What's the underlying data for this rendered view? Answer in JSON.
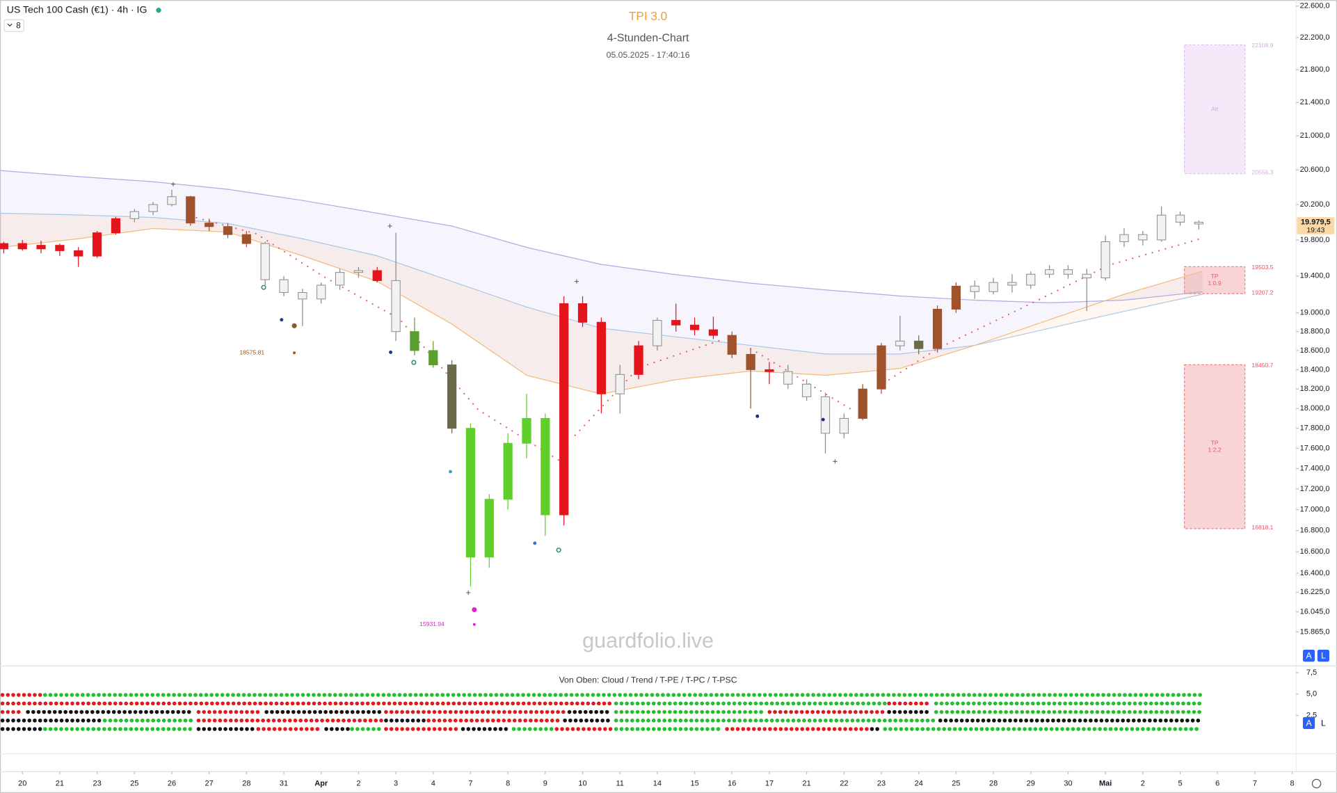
{
  "chart_data": {
    "type": "candlestick",
    "symbol": "US Tech 100 Cash (€1) · 4h · IG",
    "interval_button": "8",
    "title": "TPI 3.0",
    "subtitle": "4-Stunden-Chart",
    "timestamp": "05.05.2025 - 17:40:16",
    "watermark": "guardfolio.live",
    "log": true,
    "grid": false,
    "ylim": [
      15600,
      22650
    ],
    "yticks": [
      {
        "value": 22600,
        "label": "22.600,0"
      },
      {
        "value": 22200,
        "label": "22.200,0"
      },
      {
        "value": 21800,
        "label": "21.800,0"
      },
      {
        "value": 21400,
        "label": "21.400,0"
      },
      {
        "value": 21000,
        "label": "21.000,0"
      },
      {
        "value": 20600,
        "label": "20.600,0"
      },
      {
        "value": 20200,
        "label": "20.200,0"
      },
      {
        "value": 19800,
        "label": "19.800,0"
      },
      {
        "value": 19400,
        "label": "19.400,0"
      },
      {
        "value": 19000,
        "label": "19.000,0"
      },
      {
        "value": 18800,
        "label": "18.800,0"
      },
      {
        "value": 18600,
        "label": "18.600,0"
      },
      {
        "value": 18400,
        "label": "18.400,0"
      },
      {
        "value": 18200,
        "label": "18.200,0"
      },
      {
        "value": 18000,
        "label": "18.000,0"
      },
      {
        "value": 17800,
        "label": "17.800,0"
      },
      {
        "value": 17600,
        "label": "17.600,0"
      },
      {
        "value": 17400,
        "label": "17.400,0"
      },
      {
        "value": 17200,
        "label": "17.200,0"
      },
      {
        "value": 17000,
        "label": "17.000,0"
      },
      {
        "value": 16800,
        "label": "16.800,0"
      },
      {
        "value": 16600,
        "label": "16.600,0"
      },
      {
        "value": 16400,
        "label": "16.400,0"
      },
      {
        "value": 16225,
        "label": "16.225,0"
      },
      {
        "value": 16045,
        "label": "16.045,0"
      },
      {
        "value": 15865,
        "label": "15.865,0"
      }
    ],
    "xlim": [
      -0.6,
      35.2
    ],
    "xticks": [
      {
        "value": 0,
        "label": "20"
      },
      {
        "value": 1,
        "label": "21"
      },
      {
        "value": 2,
        "label": "23"
      },
      {
        "value": 3,
        "label": "25"
      },
      {
        "value": 4,
        "label": "26"
      },
      {
        "value": 5,
        "label": "27"
      },
      {
        "value": 6,
        "label": "28"
      },
      {
        "value": 7,
        "label": "31"
      },
      {
        "value": 8,
        "label": "Apr"
      },
      {
        "value": 9,
        "label": "2"
      },
      {
        "value": 10,
        "label": "3"
      },
      {
        "value": 11,
        "label": "4"
      },
      {
        "value": 12,
        "label": "7"
      },
      {
        "value": 13,
        "label": "8"
      },
      {
        "value": 14,
        "label": "9"
      },
      {
        "value": 15,
        "label": "10"
      },
      {
        "value": 16,
        "label": "11"
      },
      {
        "value": 17,
        "label": "14"
      },
      {
        "value": 18,
        "label": "15"
      },
      {
        "value": 19,
        "label": "16"
      },
      {
        "value": 20,
        "label": "17"
      },
      {
        "value": 21,
        "label": "21"
      },
      {
        "value": 22,
        "label": "22"
      },
      {
        "value": 23,
        "label": "23"
      },
      {
        "value": 24,
        "label": "24"
      },
      {
        "value": 25,
        "label": "25"
      },
      {
        "value": 26,
        "label": "28"
      },
      {
        "value": 27,
        "label": "29"
      },
      {
        "value": 28,
        "label": "30"
      },
      {
        "value": 29,
        "label": "Mai"
      },
      {
        "value": 30,
        "label": "2"
      },
      {
        "value": 31,
        "label": "5"
      },
      {
        "value": 32,
        "label": "6"
      },
      {
        "value": 33,
        "label": "7"
      },
      {
        "value": 34,
        "label": "8"
      }
    ],
    "candles": {
      "x": [
        -0.5,
        0,
        0.5,
        1,
        1.5,
        2,
        2.5,
        3,
        3.5,
        4,
        4.5,
        5,
        5.5,
        6,
        6.5,
        7,
        7.5,
        8,
        8.5,
        9,
        9.5,
        10,
        10.5,
        11,
        11.5,
        12,
        12.5,
        13,
        13.5,
        14,
        14.5,
        15,
        15.5,
        16,
        16.5,
        17,
        17.5,
        18,
        18.5,
        19,
        19.5,
        20,
        20.5,
        21,
        21.5,
        22,
        22.5,
        23,
        23.5,
        24,
        24.5,
        25,
        25.5,
        26,
        26.5,
        27,
        27.5,
        28,
        28.5,
        29,
        29.5,
        30,
        30.5,
        31,
        31.5
      ],
      "open": [
        19700,
        19760,
        19700,
        19740,
        19680,
        19620,
        19880,
        20040,
        20120,
        20200,
        20290,
        19990,
        19950,
        19860,
        19760,
        19360,
        19220,
        19150,
        19300,
        19440,
        19460,
        19350,
        18800,
        18600,
        18450,
        17800,
        16550,
        17100,
        17650,
        17900,
        16950,
        19100,
        18900,
        18150,
        18350,
        18650,
        18920,
        18870,
        18820,
        18760,
        18560,
        18400,
        18380,
        18250,
        18120,
        17750,
        17900,
        18200,
        18650,
        18700,
        18620,
        19040,
        19290,
        19230,
        19330,
        19300,
        19420,
        19470,
        19420,
        19380,
        19780,
        19860,
        19800,
        20080,
        20000
      ],
      "high": [
        19780,
        19800,
        19790,
        19760,
        19720,
        19900,
        20060,
        20150,
        20230,
        20370,
        20300,
        20040,
        19990,
        19900,
        19780,
        19400,
        19260,
        19330,
        19480,
        19500,
        19500,
        19880,
        18950,
        18700,
        18500,
        17850,
        17150,
        17750,
        18150,
        17950,
        19180,
        19180,
        18950,
        18450,
        18700,
        18950,
        19100,
        18950,
        18960,
        18800,
        18620,
        18480,
        18450,
        18300,
        18160,
        17950,
        18250,
        18680,
        18970,
        18760,
        19080,
        19330,
        19350,
        19380,
        19420,
        19450,
        19520,
        19520,
        19480,
        19850,
        19930,
        19900,
        20180,
        20120,
        20020
      ],
      "low": [
        19650,
        19680,
        19650,
        19620,
        19500,
        19600,
        19860,
        20000,
        20080,
        20180,
        19960,
        19900,
        19820,
        19720,
        19300,
        19180,
        18860,
        19100,
        19250,
        19380,
        19330,
        18700,
        18550,
        18420,
        17750,
        16280,
        16450,
        17000,
        17500,
        16750,
        16850,
        18850,
        17950,
        17950,
        18300,
        18600,
        18800,
        18760,
        18720,
        18520,
        18000,
        18250,
        18200,
        18080,
        17550,
        17700,
        17880,
        18150,
        18600,
        18560,
        18580,
        19000,
        19150,
        19200,
        19220,
        19260,
        19380,
        19370,
        19020,
        19350,
        19720,
        19740,
        19780,
        19960,
        19920
      ],
      "close": [
        19760,
        19700,
        19740,
        19680,
        19620,
        19880,
        20040,
        20120,
        20200,
        20290,
        19990,
        19950,
        19860,
        19760,
        19360,
        19220,
        19150,
        19300,
        19440,
        19460,
        19350,
        18800,
        18600,
        18450,
        17800,
        16550,
        17100,
        17650,
        17900,
        16950,
        19100,
        18900,
        18150,
        18350,
        18650,
        18920,
        18870,
        18820,
        18760,
        18560,
        18400,
        18380,
        18250,
        18120,
        17750,
        17900,
        18200,
        18650,
        18700,
        18620,
        19040,
        19290,
        19230,
        19330,
        19300,
        19420,
        19470,
        19420,
        19380,
        19780,
        19860,
        19800,
        20080,
        20000,
        19979.5
      ],
      "colors": [
        "#e3141c",
        "#e3141c",
        "#e3141c",
        "#e3141c",
        "#e3141c",
        "#e3141c",
        "#e3141c",
        "#f2f2f2",
        "#f2f2f2",
        "#f2f2f2",
        "#a0522d",
        "#a0522d",
        "#a0522d",
        "#a0522d",
        "#f2f2f2",
        "#f2f2f2",
        "#f2f2f2",
        "#f2f2f2",
        "#f2f2f2",
        "#f2f2f2",
        "#e3141c",
        "#f2f2f2",
        "#5a9e2f",
        "#5a9e2f",
        "#6b6a4a",
        "#5fcf2a",
        "#5fcf2a",
        "#5fcf2a",
        "#5fcf2a",
        "#5fcf2a",
        "#e3141c",
        "#e3141c",
        "#e3141c",
        "#f2f2f2",
        "#e3141c",
        "#f2f2f2",
        "#e3141c",
        "#e3141c",
        "#e3141c",
        "#a0522d",
        "#a0522d",
        "#e3141c",
        "#f2f2f2",
        "#f2f2f2",
        "#f2f2f2",
        "#f2f2f2",
        "#a0522d",
        "#a0522d",
        "#f2f2f2",
        "#6b6a4a",
        "#a0522d",
        "#a0522d",
        "#f2f2f2",
        "#f2f2f2",
        "#f2f2f2",
        "#f2f2f2",
        "#f2f2f2",
        "#f2f2f2",
        "#f2f2f2",
        "#f2f2f2",
        "#f2f2f2",
        "#f2f2f2",
        "#f2f2f2",
        "#f2f2f2",
        "#f2f2f2"
      ],
      "hollow_color": "#f2f2f2"
    },
    "bands": {
      "x": [
        -0.6,
        1.5,
        3.5,
        5.5,
        7.5,
        9.5,
        11.5,
        13.5,
        15.5,
        17.5,
        19.5,
        21.5,
        23.5,
        25.5,
        27.5,
        29.5,
        31.6
      ],
      "lines": [
        {
          "color": "#b2a8e4",
          "values": [
            20592,
            20522,
            20463,
            20375,
            20247,
            20102,
            19956,
            19717,
            19528,
            19415,
            19322,
            19248,
            19183,
            19137,
            19109,
            19137,
            19229
          ]
        },
        {
          "color": "#a8c8e8",
          "values": [
            20102,
            20082,
            20053,
            19985,
            19813,
            19623,
            19341,
            19063,
            18835,
            18744,
            18654,
            18564,
            18564,
            18654,
            18835,
            19017,
            19201
          ]
        },
        {
          "color": "#f5b97a",
          "values": [
            19717,
            19813,
            19928,
            19889,
            19623,
            19341,
            18880,
            18342,
            18148,
            18297,
            18386,
            18342,
            18413,
            18654,
            18926,
            19201,
            19453
          ]
        }
      ]
    },
    "trail": {
      "color": "#e8546a",
      "x": [
        4.66,
        6.26,
        8.08,
        10.1,
        12.2,
        14.5,
        null,
        14.8,
        16.5,
        18.7,
        null,
        19.5,
        22.2,
        null,
        22.9,
        24.5,
        26.8,
        29.1,
        31.6
      ],
      "values": [
        20050,
        19870,
        19390,
        18935,
        17990,
        17450,
        null,
        17730,
        18420,
        18710,
        null,
        18620,
        17990,
        null,
        18220,
        18620,
        19060,
        19520,
        19820
      ]
    },
    "signals": [
      {
        "x": 6.46,
        "value": 19276,
        "color": "#2e8b57",
        "style": "ring"
      },
      {
        "x": 6.94,
        "value": 18926,
        "color": "#1a3a8f",
        "style": "dot"
      },
      {
        "x": 7.28,
        "value": 18862,
        "color": "#8b5a2b",
        "style": "big"
      },
      {
        "x": 9.86,
        "value": 18582,
        "color": "#1a3a8f",
        "style": "dot"
      },
      {
        "x": 10.48,
        "value": 18475,
        "color": "#2e8b57",
        "style": "ring"
      },
      {
        "x": 11.46,
        "value": 17369,
        "color": "#3aa0c8",
        "style": "dot"
      },
      {
        "x": 12.1,
        "value": 16065,
        "color": "#e020d0",
        "style": "big"
      },
      {
        "x": 13.72,
        "value": 16681,
        "color": "#3a7ac8",
        "style": "dot"
      },
      {
        "x": 14.36,
        "value": 16616,
        "color": "#2e8b57",
        "style": "ring"
      },
      {
        "x": 19.68,
        "value": 17922,
        "color": "#1a2a7f",
        "style": "dot"
      },
      {
        "x": 21.44,
        "value": 17888,
        "color": "#1a2a7f",
        "style": "dot"
      }
    ],
    "crosses": {
      "color": "#666",
      "x": [
        4.04,
        9.84,
        11.94,
        14.84,
        21.76
      ],
      "values": [
        20434,
        19956,
        16220,
        19341,
        17470
      ]
    },
    "annotations": [
      {
        "x": 7.28,
        "value": 18575.81,
        "color": "#8b5a2b"
      },
      {
        "x": 12.1,
        "value": 15931.94,
        "color": "#e020d0"
      }
    ],
    "zones": [
      {
        "label": "Att",
        "top": 22108.9,
        "bottom": 20556.3,
        "color": "#d9a6e8"
      },
      {
        "label": "TP",
        "ratio": "1:0.9",
        "top": 19503.5,
        "bottom": 19207.2,
        "color": "#e8545a"
      },
      {
        "label": "TP",
        "ratio": "1:2.2",
        "top": 18450.7,
        "bottom": 16818.1,
        "color": "#e8545a"
      }
    ],
    "last_price": {
      "value": 19979.5,
      "label": "19.979,5"
    },
    "countdown": "19:43",
    "scale_buttons": [
      [
        "A",
        "L"
      ],
      [
        "A",
        "L"
      ]
    ],
    "indicator": {
      "title": "Von Oben: Cloud / Trend / T-PE / T-PC / T-PSC",
      "ylim": [
        0,
        8.2
      ],
      "yticks": [
        {
          "value": 7.5,
          "label": "7,5"
        },
        {
          "value": 5,
          "label": "5,0"
        },
        {
          "value": 2.5,
          "label": "2,5"
        }
      ],
      "rows": [
        [
          {
            "color": "#e31a1c",
            "from": -0.59,
            "to": 0.55
          },
          {
            "color": "#22c02a",
            "from": 0.55,
            "to": 31.6
          }
        ],
        [
          {
            "color": "#e31a1c",
            "from": -0.59,
            "to": 15.84
          },
          {
            "color": "#22c02a",
            "from": 15.84,
            "to": 23.15
          },
          {
            "color": "#e31a1c",
            "from": 23.15,
            "to": 24.41
          },
          {
            "color": "#22c02a",
            "from": 24.41,
            "to": 31.6
          }
        ],
        [
          {
            "color": "#e31a1c",
            "from": -0.59,
            "to": 0.09
          },
          {
            "color": "#111111",
            "from": 0.09,
            "to": 4.66
          },
          {
            "color": "#e31a1c",
            "from": 4.66,
            "to": 6.48
          },
          {
            "color": "#111111",
            "from": 6.48,
            "to": 9.68
          },
          {
            "color": "#e31a1c",
            "from": 9.68,
            "to": 14.59
          },
          {
            "color": "#111111",
            "from": 14.59,
            "to": 15.84
          },
          {
            "color": "#22c02a",
            "from": 15.84,
            "to": 19.95
          },
          {
            "color": "#e31a1c",
            "from": 19.95,
            "to": 23.15
          },
          {
            "color": "#111111",
            "from": 23.15,
            "to": 24.41
          },
          {
            "color": "#22c02a",
            "from": 24.41,
            "to": 31.6
          }
        ],
        [
          {
            "color": "#111111",
            "from": -0.59,
            "to": 2.15
          },
          {
            "color": "#22c02a",
            "from": 2.15,
            "to": 4.66
          },
          {
            "color": "#e31a1c",
            "from": 4.66,
            "to": 9.68
          },
          {
            "color": "#111111",
            "from": 9.68,
            "to": 10.82
          },
          {
            "color": "#e31a1c",
            "from": 10.82,
            "to": 14.47
          },
          {
            "color": "#111111",
            "from": 14.47,
            "to": 15.84
          },
          {
            "color": "#22c02a",
            "from": 15.84,
            "to": 24.52
          },
          {
            "color": "#111111",
            "from": 24.52,
            "to": 31.6
          }
        ],
        [
          {
            "color": "#111111",
            "from": -0.59,
            "to": 0.55
          },
          {
            "color": "#22c02a",
            "from": 0.55,
            "to": 4.66
          },
          {
            "color": "#111111",
            "from": 4.66,
            "to": 6.26
          },
          {
            "color": "#e31a1c",
            "from": 6.26,
            "to": 8.08
          },
          {
            "color": "#111111",
            "from": 8.08,
            "to": 8.77
          },
          {
            "color": "#22c02a",
            "from": 8.77,
            "to": 9.68
          },
          {
            "color": "#e31a1c",
            "from": 9.68,
            "to": 11.74
          },
          {
            "color": "#111111",
            "from": 11.74,
            "to": 13.1
          },
          {
            "color": "#22c02a",
            "from": 13.1,
            "to": 14.25
          },
          {
            "color": "#e31a1c",
            "from": 14.25,
            "to": 15.84
          },
          {
            "color": "#22c02a",
            "from": 15.84,
            "to": 18.81
          },
          {
            "color": "#e31a1c",
            "from": 18.81,
            "to": 22.69
          },
          {
            "color": "#111111",
            "from": 22.69,
            "to": 23.04
          },
          {
            "color": "#22c02a",
            "from": 23.04,
            "to": 31.6
          }
        ]
      ]
    }
  }
}
